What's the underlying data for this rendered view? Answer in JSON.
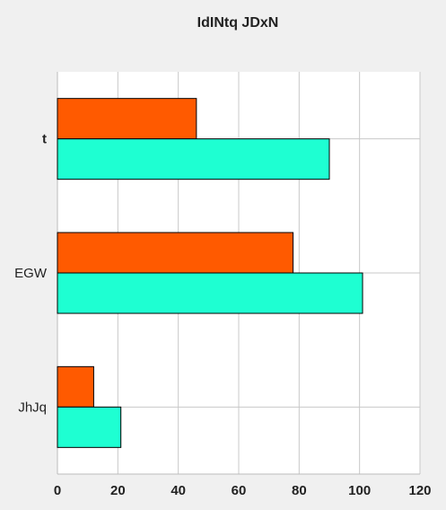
{
  "chart_data": {
    "type": "bar",
    "orientation": "horizontal",
    "title": "IdINtq JDxN",
    "xlabel": "",
    "ylabel": "",
    "categories": [
      "t",
      "EGW",
      "JhJq"
    ],
    "series": [
      {
        "color": "#ff5a00",
        "values": [
          46,
          78,
          12
        ]
      },
      {
        "color": "#1effd2",
        "values": [
          90,
          101,
          21
        ]
      }
    ],
    "xlim": [
      0,
      120
    ],
    "xticks": [
      0,
      20,
      40,
      60,
      80,
      100,
      120
    ],
    "grid": true,
    "legend": "none"
  }
}
